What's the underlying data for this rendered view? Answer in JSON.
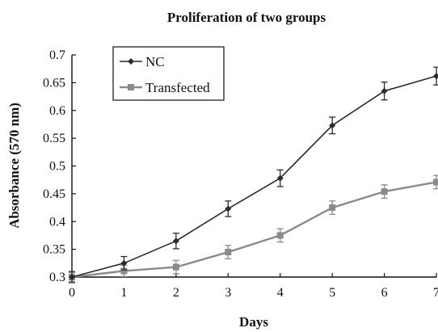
{
  "chart_data": {
    "type": "line",
    "title": "Proliferation of two groups",
    "xlabel": "Days",
    "ylabel": "Absorbance (570 nm)",
    "x": [
      0,
      1,
      2,
      3,
      4,
      5,
      6,
      7
    ],
    "xlim": [
      0,
      7
    ],
    "ylim": [
      0.3,
      0.7
    ],
    "x_ticks": [
      "0",
      "1",
      "2",
      "3",
      "4",
      "5",
      "6",
      "7"
    ],
    "y_ticks": [
      "0.3",
      "0.35",
      "0.4",
      "0.45",
      "0.5",
      "0.55",
      "0.6",
      "0.65",
      "0.7"
    ],
    "grid": false,
    "legend_position": "top-left",
    "series": [
      {
        "name": "NC",
        "marker": "diamond",
        "color": "#2a2a2a",
        "values": [
          0.3,
          0.325,
          0.365,
          0.423,
          0.478,
          0.573,
          0.635,
          0.662
        ],
        "errors": [
          0.01,
          0.012,
          0.014,
          0.014,
          0.015,
          0.015,
          0.016,
          0.016
        ]
      },
      {
        "name": "Transfected",
        "marker": "square",
        "color": "#8a8a8a",
        "values": [
          0.3,
          0.311,
          0.318,
          0.345,
          0.375,
          0.425,
          0.454,
          0.471
        ],
        "errors": [
          0.008,
          0.01,
          0.012,
          0.012,
          0.012,
          0.012,
          0.012,
          0.012
        ]
      }
    ]
  }
}
